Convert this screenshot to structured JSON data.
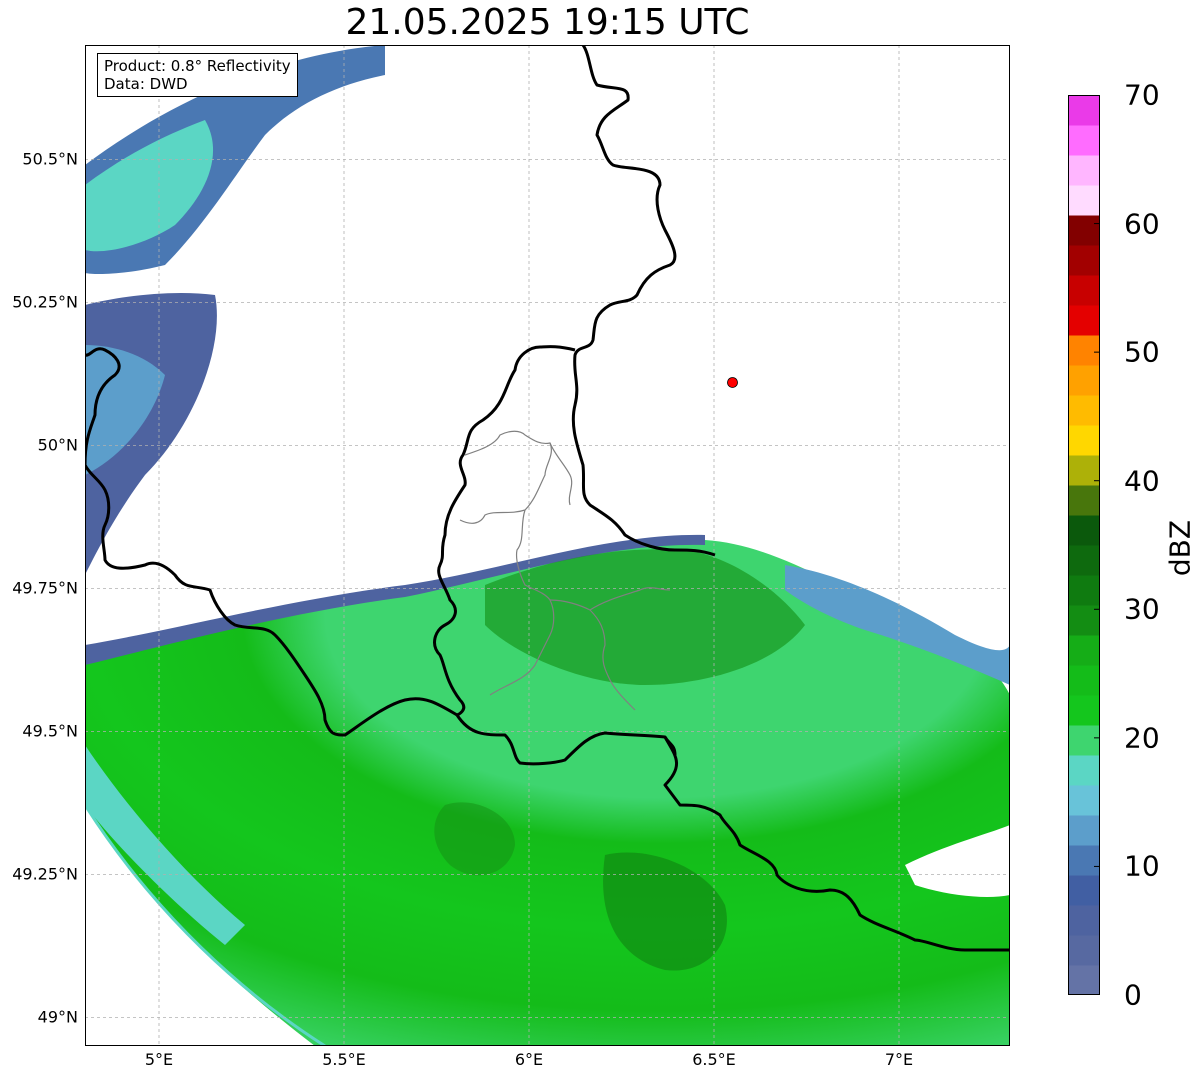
{
  "title": "21.05.2025 19:15 UTC",
  "info_box": {
    "product": "Product: 0.8° Reflectivity",
    "data": "Data: DWD"
  },
  "map": {
    "projection": "PlateCarree",
    "lon_range": [
      4.8,
      7.3
    ],
    "lat_range": [
      48.95,
      50.7
    ],
    "lat_ticks": [
      {
        "value": 50.5,
        "label": "50.5°N"
      },
      {
        "value": 50.25,
        "label": "50.25°N"
      },
      {
        "value": 50.0,
        "label": "50°N"
      },
      {
        "value": 49.75,
        "label": "49.75°N"
      },
      {
        "value": 49.5,
        "label": "49.5°N"
      },
      {
        "value": 49.25,
        "label": "49.25°N"
      },
      {
        "value": 49.0,
        "label": "49°N"
      }
    ],
    "lon_ticks": [
      {
        "value": 5.0,
        "label": "5°E"
      },
      {
        "value": 5.5,
        "label": "5.5°E"
      },
      {
        "value": 6.0,
        "label": "6°E"
      },
      {
        "value": 6.5,
        "label": "6.5°E"
      },
      {
        "value": 7.0,
        "label": "7°E"
      }
    ],
    "grid": true,
    "radar_site": {
      "lon": 6.55,
      "lat": 50.11,
      "color": "#ff0000"
    },
    "border_color": "#000000",
    "internal_border_color": "#808080",
    "range_ring_center": {
      "lon": 6.55,
      "lat": 50.11
    }
  },
  "colorbar": {
    "label": "dBZ",
    "min": 0,
    "max": 70,
    "ticks": [
      "0",
      "10",
      "20",
      "30",
      "40",
      "50",
      "60",
      "70"
    ],
    "colors": [
      "#6473a6",
      "#5769a1",
      "#4e63a0",
      "#415fa3",
      "#4a78b3",
      "#5c9ecb",
      "#68c3d9",
      "#5bd6c4",
      "#3ed56f",
      "#14c61d",
      "#14bc19",
      "#15ad17",
      "#138d13",
      "#0f7b10",
      "#0e6a0e",
      "#0b590c",
      "#48760c",
      "#adb108",
      "#ffd700",
      "#ffbb00",
      "#ffa100",
      "#ff8300",
      "#e40000",
      "#c80000",
      "#a20000",
      "#820000",
      "#ffdbff",
      "#ffb6ff",
      "#ff6cff",
      "#ea3ae8"
    ]
  }
}
